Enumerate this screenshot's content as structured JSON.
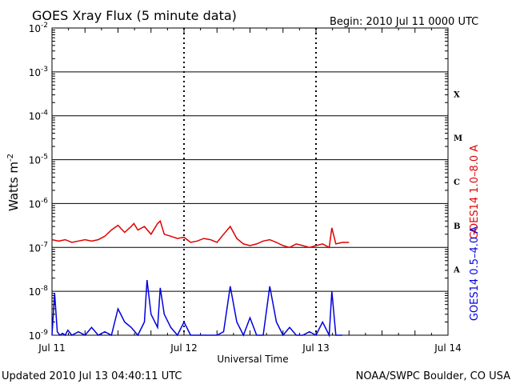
{
  "chart_data": {
    "type": "line",
    "title": "GOES Xray Flux (5 minute data)",
    "begin_label": "Begin:  2010 Jul 11 0000 UTC",
    "xlabel": "Universal Time",
    "ylabel": "Watts m",
    "ylabel_sup": "-2",
    "yscale": "log",
    "ylim": [
      1e-09,
      0.01
    ],
    "xlim": [
      0,
      3
    ],
    "grid": true,
    "x_unit": "days since 2010 Jul 11 0000 UTC",
    "x_ticks": [
      {
        "x": 0,
        "label": "Jul 11"
      },
      {
        "x": 1,
        "label": "Jul 12"
      },
      {
        "x": 2,
        "label": "Jul 13"
      },
      {
        "x": 3,
        "label": "Jul 14"
      }
    ],
    "y_ticks": [
      {
        "exp": -9,
        "base": "10",
        "sup": "-9"
      },
      {
        "exp": -8,
        "base": "10",
        "sup": "-8"
      },
      {
        "exp": -7,
        "base": "10",
        "sup": "-7"
      },
      {
        "exp": -6,
        "base": "10",
        "sup": "-6"
      },
      {
        "exp": -5,
        "base": "10",
        "sup": "-5"
      },
      {
        "exp": -4,
        "base": "10",
        "sup": "-4"
      },
      {
        "exp": -3,
        "base": "10",
        "sup": "-3"
      },
      {
        "exp": -2,
        "base": "10",
        "sup": "-2"
      }
    ],
    "flare_classes": [
      {
        "label": "A",
        "exp": -7.5
      },
      {
        "label": "B",
        "exp": -6.5
      },
      {
        "label": "C",
        "exp": -5.5
      },
      {
        "label": "M",
        "exp": -4.5
      },
      {
        "label": "X",
        "exp": -3.5
      }
    ],
    "series": [
      {
        "name": "GOES14 1.0–8.0 A",
        "color": "#e00000",
        "x": [
          0.0,
          0.05,
          0.1,
          0.15,
          0.2,
          0.25,
          0.3,
          0.35,
          0.4,
          0.45,
          0.5,
          0.55,
          0.6,
          0.62,
          0.65,
          0.7,
          0.75,
          0.8,
          0.82,
          0.85,
          0.9,
          0.95,
          1.0,
          1.05,
          1.1,
          1.15,
          1.2,
          1.25,
          1.3,
          1.35,
          1.4,
          1.45,
          1.5,
          1.55,
          1.6,
          1.65,
          1.7,
          1.75,
          1.8,
          1.85,
          1.9,
          1.95,
          2.0,
          2.05,
          2.1,
          2.12,
          2.15,
          2.2,
          2.25
        ],
        "y": [
          1.5e-07,
          1.4e-07,
          1.5e-07,
          1.3e-07,
          1.4e-07,
          1.5e-07,
          1.4e-07,
          1.5e-07,
          1.8e-07,
          2.5e-07,
          3.2e-07,
          2.2e-07,
          3e-07,
          3.5e-07,
          2.5e-07,
          3e-07,
          2e-07,
          3.5e-07,
          4e-07,
          2e-07,
          1.8e-07,
          1.6e-07,
          1.7e-07,
          1.3e-07,
          1.4e-07,
          1.6e-07,
          1.5e-07,
          1.3e-07,
          2e-07,
          3e-07,
          1.6e-07,
          1.2e-07,
          1.1e-07,
          1.2e-07,
          1.4e-07,
          1.5e-07,
          1.3e-07,
          1.1e-07,
          1e-07,
          1.2e-07,
          1.1e-07,
          1e-07,
          1.1e-07,
          1.2e-07,
          1e-07,
          2.8e-07,
          1.2e-07,
          1.3e-07,
          1.3e-07
        ]
      },
      {
        "name": "GOES14 0.5–4.0 A",
        "color": "#0000e0",
        "x": [
          0.0,
          0.02,
          0.04,
          0.06,
          0.08,
          0.1,
          0.12,
          0.15,
          0.2,
          0.25,
          0.3,
          0.35,
          0.4,
          0.45,
          0.5,
          0.55,
          0.6,
          0.65,
          0.7,
          0.72,
          0.75,
          0.8,
          0.82,
          0.85,
          0.9,
          0.95,
          1.0,
          1.05,
          1.1,
          1.15,
          1.2,
          1.25,
          1.3,
          1.35,
          1.4,
          1.45,
          1.5,
          1.55,
          1.6,
          1.65,
          1.7,
          1.75,
          1.8,
          1.85,
          1.9,
          1.95,
          2.0,
          2.05,
          2.1,
          2.12,
          2.15,
          2.2
        ],
        "y": [
          1e-09,
          9e-09,
          1.2e-09,
          1e-09,
          1.1e-09,
          1e-09,
          1.3e-09,
          1e-09,
          1.2e-09,
          1e-09,
          1.5e-09,
          1e-09,
          1.2e-09,
          1e-09,
          4e-09,
          2e-09,
          1.5e-09,
          1e-09,
          2e-09,
          1.8e-08,
          3e-09,
          1.5e-09,
          1.2e-08,
          3e-09,
          1.5e-09,
          1e-09,
          2e-09,
          1e-09,
          1e-09,
          1e-09,
          1e-09,
          1e-09,
          1.2e-09,
          1.3e-08,
          2e-09,
          1e-09,
          2.5e-09,
          1e-09,
          1e-09,
          1.3e-08,
          2e-09,
          1e-09,
          1.5e-09,
          1e-09,
          1e-09,
          1.2e-09,
          1e-09,
          2e-09,
          1e-09,
          1e-08,
          1e-09,
          1e-09
        ]
      }
    ]
  },
  "footer": {
    "updated": "Updated 2010 Jul 13 04:40:11 UTC",
    "credit": "NOAA/SWPC Boulder, CO USA"
  }
}
